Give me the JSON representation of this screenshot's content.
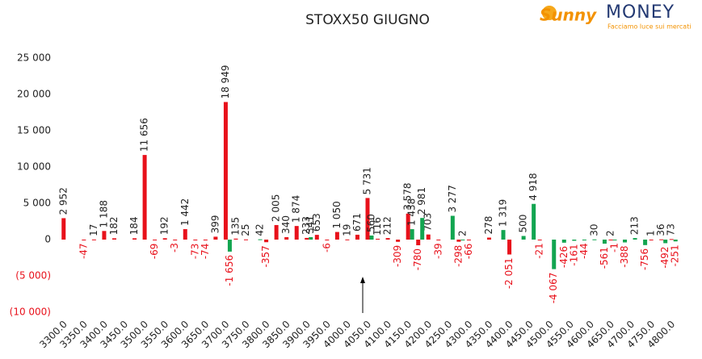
{
  "chart_data": {
    "type": "bar",
    "title": "STOXX50 GIUGNO",
    "categories": [
      "3300.0",
      null,
      "3350.0",
      null,
      "3400.0",
      null,
      "3450.0",
      null,
      "3500.0",
      null,
      "3550.0",
      null,
      "3600.0",
      null,
      "3650.0",
      null,
      "3700.0",
      null,
      "3750.0",
      null,
      "3800.0",
      null,
      "3850.0",
      null,
      "3900.0",
      null,
      "3950.0",
      null,
      "4000.0",
      null,
      "4050.0",
      null,
      "4100.0",
      null,
      "4150.0",
      null,
      "4200.0",
      null,
      "4250.0",
      null,
      "4300.0",
      null,
      "4350.0",
      null,
      "4400.0",
      null,
      "4450.0",
      null,
      "4500.0",
      null,
      "4550.0",
      null,
      "4600.0",
      null,
      "4650.0",
      null,
      "4700.0",
      null,
      "4750.0",
      null,
      "4800.0"
    ],
    "series": [
      {
        "color": "#e8111b",
        "values": [
          2952,
          null,
          -47,
          17,
          1188,
          182,
          null,
          184,
          11656,
          -69,
          192,
          -3,
          1442,
          -73,
          -74,
          399,
          18949,
          135,
          25,
          null,
          -357,
          2005,
          340,
          1874,
          233,
          653,
          -6,
          1050,
          19,
          671,
          5731,
          116,
          212,
          -309,
          3578,
          -780,
          703,
          -39,
          null,
          -298,
          -66,
          null,
          278,
          null,
          -2051,
          null,
          null,
          -21,
          null,
          null,
          null,
          null,
          null,
          null,
          2,
          null,
          null,
          null,
          1,
          36,
          73
        ],
        "value_labels": [
          "2 952",
          null,
          "-47",
          "17",
          "1 188",
          "182",
          null,
          "184",
          "11 656",
          "-69",
          "192",
          "-3",
          "1 442",
          "-73",
          "-74",
          "399",
          "18 949",
          "135",
          "25",
          null,
          "-357",
          "2 005",
          "340",
          "1 874",
          "233",
          "653",
          "-6",
          "1 050",
          "19",
          "671",
          "5 731",
          "116",
          "212",
          "-309",
          "3 578",
          "-780",
          "703",
          "-39",
          null,
          "-298",
          "-66",
          null,
          "278",
          null,
          "-2 051",
          null,
          null,
          "-21",
          null,
          null,
          null,
          null,
          null,
          null,
          "2",
          null,
          null,
          null,
          "1",
          "36",
          "73"
        ]
      },
      {
        "color": "#12a550",
        "values": [
          null,
          null,
          null,
          null,
          null,
          null,
          null,
          null,
          null,
          null,
          null,
          null,
          null,
          null,
          null,
          null,
          -1656,
          null,
          null,
          42,
          null,
          null,
          null,
          null,
          341,
          null,
          null,
          null,
          null,
          null,
          560,
          null,
          null,
          null,
          1438,
          2981,
          null,
          null,
          3277,
          2,
          null,
          null,
          null,
          1319,
          null,
          500,
          4918,
          null,
          -4067,
          -426,
          -161,
          -44,
          30,
          -561,
          -1,
          -388,
          213,
          -756,
          null,
          -492,
          -251
        ],
        "value_labels": [
          null,
          null,
          null,
          null,
          null,
          null,
          null,
          null,
          null,
          null,
          null,
          null,
          null,
          null,
          null,
          null,
          "-1 656",
          null,
          null,
          "42",
          null,
          null,
          null,
          null,
          "341",
          null,
          null,
          null,
          null,
          null,
          "560",
          null,
          null,
          null,
          "1 438",
          "2 981",
          null,
          null,
          "3 277",
          "2",
          null,
          null,
          null,
          "1 319",
          null,
          "500",
          "4 918",
          null,
          "-4 067",
          "-426",
          "-161",
          "-44",
          "30",
          "-561",
          "-1",
          "-388",
          "213",
          "-756",
          null,
          "-492",
          "-251"
        ]
      }
    ],
    "ylim": [
      -10000,
      25000
    ],
    "yticks": [
      {
        "value": -10000,
        "label": "(10 000)"
      },
      {
        "value": -5000,
        "label": "(5 000)"
      },
      0,
      {
        "value": 5000,
        "label": "5 000"
      },
      {
        "value": 10000,
        "label": "10 000"
      },
      {
        "value": 15000,
        "label": "15 000"
      },
      {
        "value": 20000,
        "label": "20 000"
      },
      {
        "value": 25000,
        "label": "25 000"
      }
    ],
    "grid": false
  },
  "logo": {
    "brand": "Sunny",
    "brand2": "MONEY",
    "tagline": "Facciamo luce sui mercati"
  }
}
